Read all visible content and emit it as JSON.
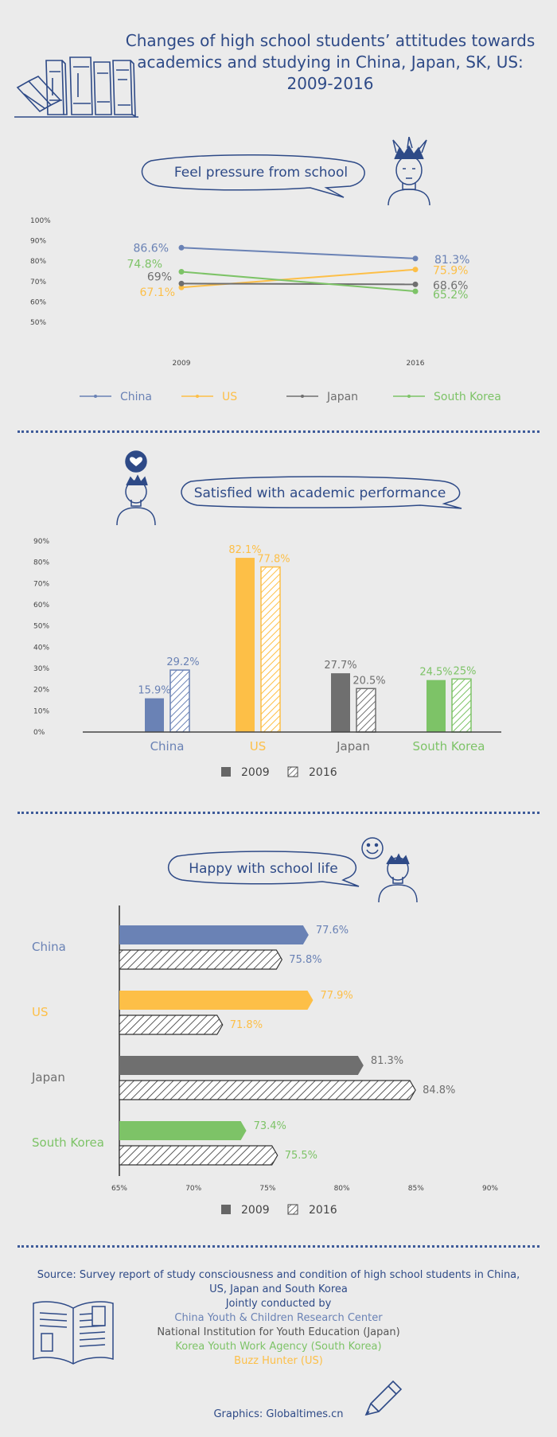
{
  "title": "Changes of high school students’ attitudes towards academics and studying in China, Japan, SK, US: 2009-2016",
  "colors": {
    "China": "#6a82b5",
    "US": "#fdbf47",
    "Japan": "#6f6f6f",
    "South Korea": "#7dc367",
    "accent": "#2e4a87"
  },
  "icons": [
    "books-icon",
    "stressed-student-icon",
    "heart-student-icon",
    "smiley-icon",
    "happy-student-icon",
    "open-book-icon",
    "pencil-icon"
  ],
  "chart_data": [
    {
      "type": "line",
      "title": "Feel pressure from school",
      "categories": [
        "2009",
        "2016"
      ],
      "ylim": [
        50,
        100
      ],
      "yticks": [
        "100%",
        "90%",
        "80%",
        "70%",
        "60%",
        "50%"
      ],
      "series": [
        {
          "name": "China",
          "values": [
            86.6,
            81.3
          ],
          "labels": [
            "86.6%",
            "81.3%"
          ]
        },
        {
          "name": "US",
          "values": [
            67.1,
            75.9
          ],
          "labels": [
            "67.1%",
            "75.9%"
          ]
        },
        {
          "name": "Japan",
          "values": [
            69,
            68.6
          ],
          "labels": [
            "69%",
            "68.6%"
          ]
        },
        {
          "name": "South Korea",
          "values": [
            74.8,
            65.2
          ],
          "labels": [
            "74.8%",
            "65.2%"
          ]
        }
      ],
      "legend": "bottom"
    },
    {
      "type": "bar",
      "title": "Satisfied with academic performance",
      "categories": [
        "China",
        "US",
        "Japan",
        "South Korea"
      ],
      "ylim": [
        0,
        90
      ],
      "yticks": [
        "90%",
        "80%",
        "70%",
        "60%",
        "50%",
        "40%",
        "30%",
        "20%",
        "10%",
        "0%"
      ],
      "series": [
        {
          "name": "2009",
          "values": [
            15.9,
            82.1,
            27.7,
            24.5
          ],
          "labels": [
            "15.9%",
            "82.1%",
            "27.7%",
            "24.5%"
          ]
        },
        {
          "name": "2016",
          "values": [
            29.2,
            77.8,
            20.5,
            25
          ],
          "labels": [
            "29.2%",
            "77.8%",
            "20.5%",
            "25%"
          ]
        }
      ],
      "legend": "bottom"
    },
    {
      "type": "bar",
      "orientation": "horizontal",
      "title": "Happy with school life",
      "categories": [
        "China",
        "US",
        "Japan",
        "South Korea"
      ],
      "xlim": [
        65,
        90
      ],
      "xticks": [
        "65%",
        "70%",
        "75%",
        "80%",
        "85%",
        "90%"
      ],
      "series": [
        {
          "name": "2009",
          "values": [
            77.6,
            77.9,
            81.3,
            73.4
          ],
          "labels": [
            "77.6%",
            "77.9%",
            "81.3%",
            "73.4%"
          ]
        },
        {
          "name": "2016",
          "values": [
            75.8,
            71.8,
            84.8,
            75.5
          ],
          "labels": [
            "75.8%",
            "71.8%",
            "84.8%",
            "75.5%"
          ]
        }
      ],
      "legend": "bottom"
    }
  ],
  "footer": {
    "source": "Source: Survey report of study consciousness and condition of high school students in China, US, Japan and South Korea",
    "jointly": "Jointly conducted by",
    "orgs": [
      "China Youth & Children Research Center",
      "National Institution for Youth Education (Japan)",
      "Korea Youth Work Agency (South Korea)",
      "Buzz Hunter (US)"
    ],
    "credit": "Graphics: Globaltimes.cn"
  }
}
